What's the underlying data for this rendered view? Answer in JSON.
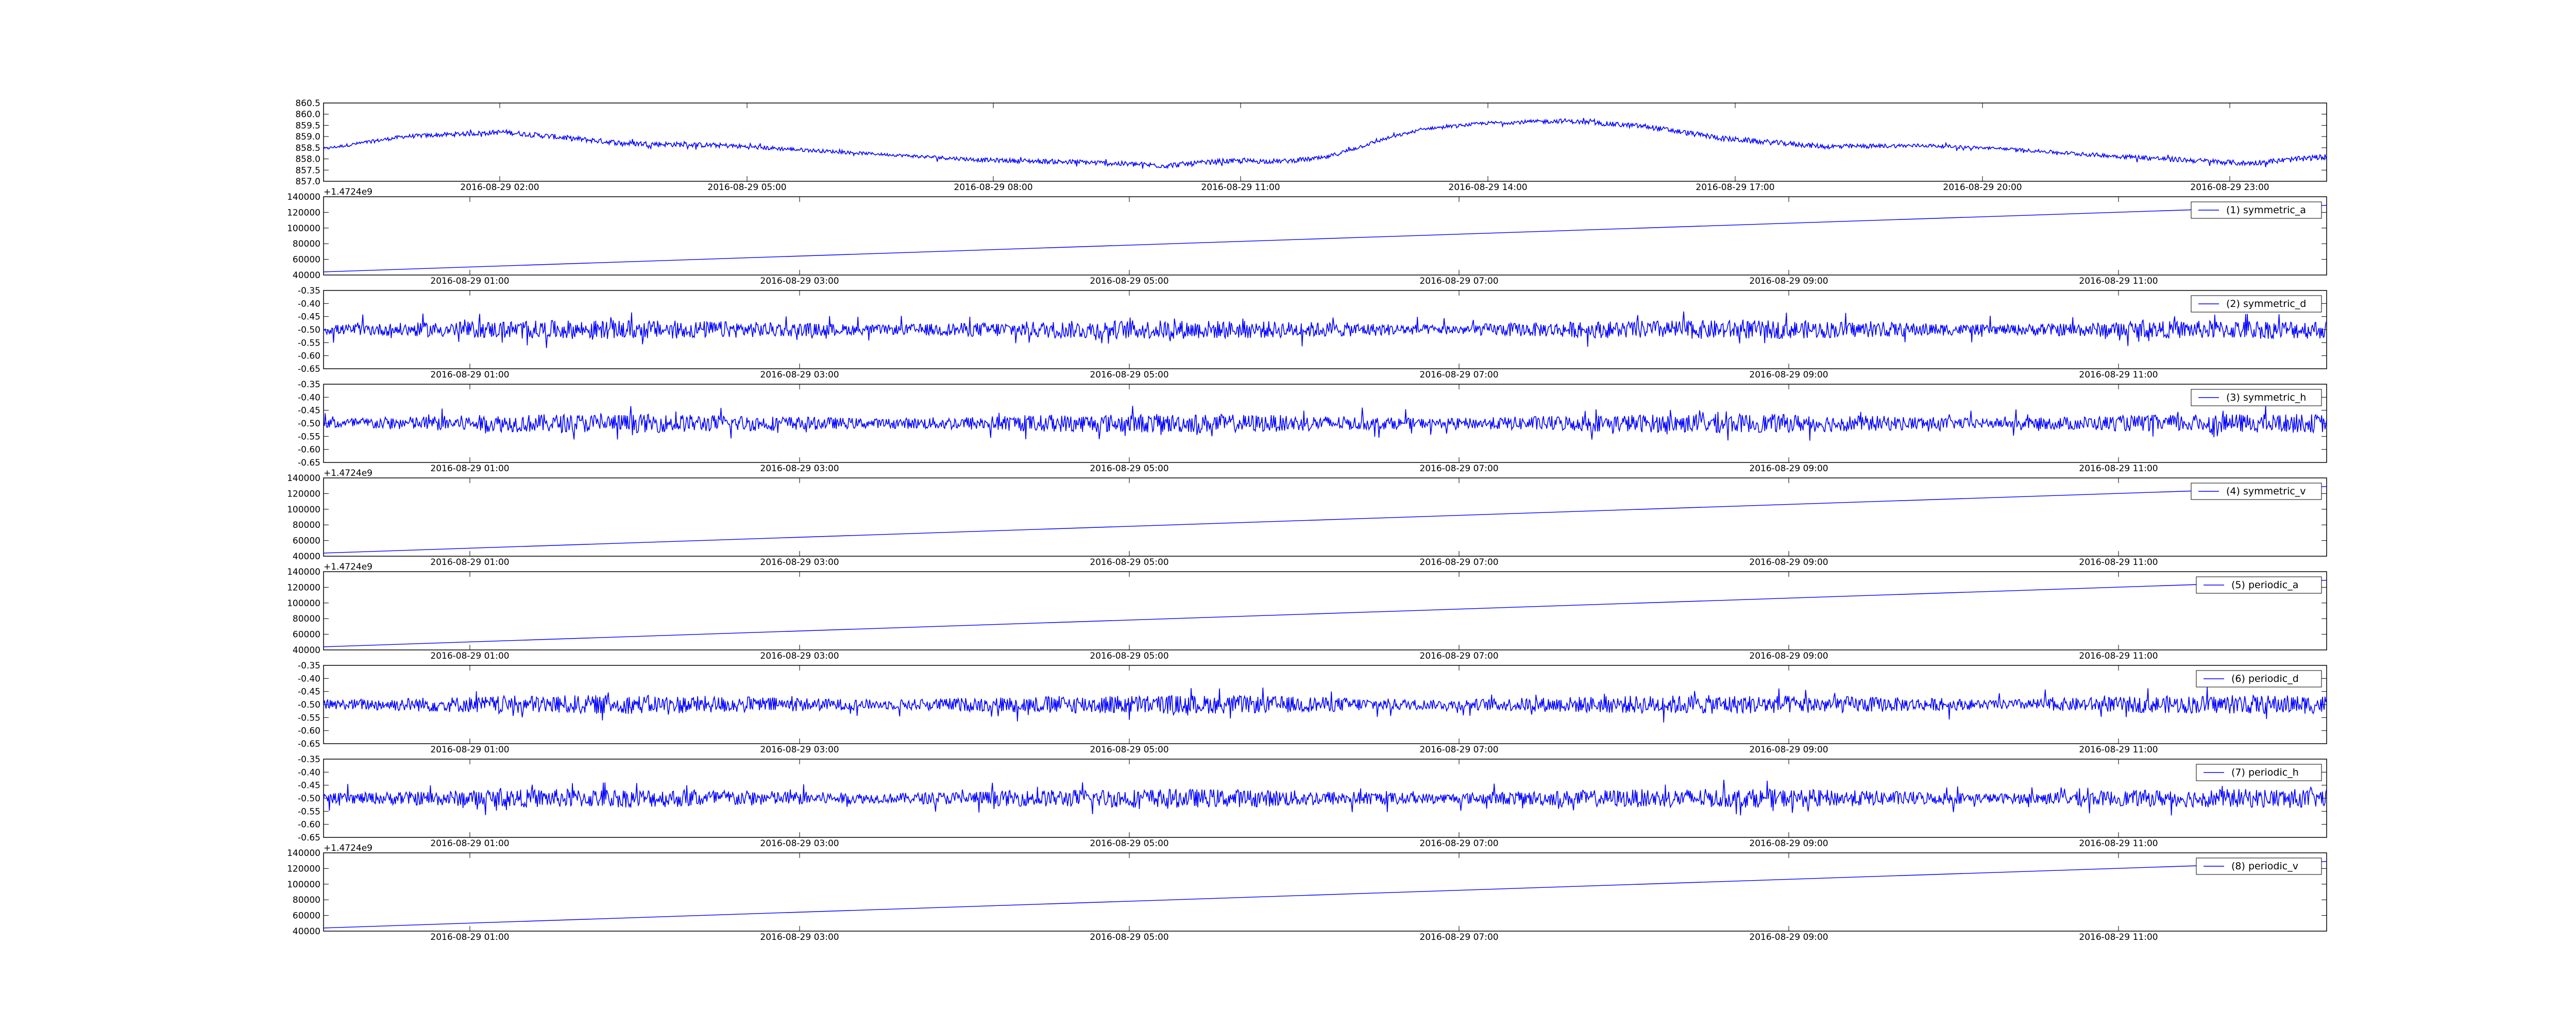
{
  "chart_data": [
    {
      "type": "line",
      "series": [
        {
          "name": "",
          "color": "#0000ff"
        }
      ],
      "ylim": [
        857.0,
        860.5
      ],
      "yticks": [
        "860.5",
        "860.0",
        "859.5",
        "859.0",
        "858.5",
        "858.0",
        "857.5",
        "857.0"
      ],
      "xtick_labels": [
        "2016-08-29 02:00",
        "2016-08-29 05:00",
        "2016-08-29 08:00",
        "2016-08-29 11:00",
        "2016-08-29 14:00",
        "2016-08-29 17:00",
        "2016-08-29 20:00",
        "2016-08-29 23:00"
      ],
      "offset_text": "",
      "legend": "",
      "trend_x": [
        0.0,
        0.04,
        0.09,
        0.15,
        0.2,
        0.28,
        0.33,
        0.38,
        0.42,
        0.45,
        0.48,
        0.5,
        0.53,
        0.55,
        0.58,
        0.62,
        0.66,
        0.7,
        0.75,
        0.8,
        0.84,
        0.88,
        0.92,
        0.96,
        1.0
      ],
      "trend_y": [
        858.45,
        859.0,
        859.2,
        858.7,
        858.6,
        858.2,
        857.95,
        857.85,
        857.7,
        857.9,
        857.9,
        858.05,
        858.9,
        859.35,
        859.6,
        859.7,
        859.45,
        858.9,
        858.55,
        858.6,
        858.45,
        858.2,
        858.0,
        857.8,
        858.1
      ],
      "noise": 0.1
    },
    {
      "type": "line",
      "series": [
        {
          "name": "(1) symmetric_a",
          "color": "#0000ff"
        }
      ],
      "ylim": [
        40000,
        140000
      ],
      "yticks": [
        "140000",
        "120000",
        "100000",
        "80000",
        "60000",
        "40000"
      ],
      "xtick_labels": [
        "2016-08-29 01:00",
        "2016-08-29 03:00",
        "2016-08-29 05:00",
        "2016-08-29 07:00",
        "2016-08-29 09:00",
        "2016-08-29 11:00"
      ],
      "offset_text": "+1.4724e9",
      "legend": "top-right",
      "trend_x": [
        0,
        1
      ],
      "trend_y": [
        44000,
        129000
      ],
      "noise": 0
    },
    {
      "type": "line",
      "series": [
        {
          "name": "(2) symmetric_d",
          "color": "#0000ff"
        }
      ],
      "ylim": [
        -0.65,
        -0.35
      ],
      "yticks": [
        "-0.35",
        "-0.40",
        "-0.45",
        "-0.50",
        "-0.55",
        "-0.60",
        "-0.65"
      ],
      "xtick_labels": [
        "2016-08-29 01:00",
        "2016-08-29 03:00",
        "2016-08-29 05:00",
        "2016-08-29 07:00",
        "2016-08-29 09:00",
        "2016-08-29 11:00"
      ],
      "offset_text": "",
      "legend": "top-right",
      "trend_x": [
        0,
        1
      ],
      "trend_y": [
        -0.5,
        -0.5
      ],
      "noise": 0.03
    },
    {
      "type": "line",
      "series": [
        {
          "name": "(3) symmetric_h",
          "color": "#0000ff"
        }
      ],
      "ylim": [
        -0.65,
        -0.35
      ],
      "yticks": [
        "-0.35",
        "-0.40",
        "-0.45",
        "-0.50",
        "-0.55",
        "-0.60",
        "-0.65"
      ],
      "xtick_labels": [
        "2016-08-29 01:00",
        "2016-08-29 03:00",
        "2016-08-29 05:00",
        "2016-08-29 07:00",
        "2016-08-29 09:00",
        "2016-08-29 11:00"
      ],
      "offset_text": "",
      "legend": "top-right",
      "trend_x": [
        0,
        1
      ],
      "trend_y": [
        -0.5,
        -0.5
      ],
      "noise": 0.03
    },
    {
      "type": "line",
      "series": [
        {
          "name": "(4) symmetric_v",
          "color": "#0000ff"
        }
      ],
      "ylim": [
        40000,
        140000
      ],
      "yticks": [
        "140000",
        "120000",
        "100000",
        "80000",
        "60000",
        "40000"
      ],
      "xtick_labels": [
        "2016-08-29 01:00",
        "2016-08-29 03:00",
        "2016-08-29 05:00",
        "2016-08-29 07:00",
        "2016-08-29 09:00",
        "2016-08-29 11:00"
      ],
      "offset_text": "+1.4724e9",
      "legend": "top-right",
      "trend_x": [
        0,
        1
      ],
      "trend_y": [
        44000,
        129000
      ],
      "noise": 0
    },
    {
      "type": "line",
      "series": [
        {
          "name": "(5) periodic_a",
          "color": "#0000ff"
        }
      ],
      "ylim": [
        40000,
        140000
      ],
      "yticks": [
        "140000",
        "120000",
        "100000",
        "80000",
        "60000",
        "40000"
      ],
      "xtick_labels": [
        "2016-08-29 01:00",
        "2016-08-29 03:00",
        "2016-08-29 05:00",
        "2016-08-29 07:00",
        "2016-08-29 09:00",
        "2016-08-29 11:00"
      ],
      "offset_text": "+1.4724e9",
      "legend": "top-right",
      "trend_x": [
        0,
        1
      ],
      "trend_y": [
        44000,
        129000
      ],
      "noise": 0
    },
    {
      "type": "line",
      "series": [
        {
          "name": "(6) periodic_d",
          "color": "#0000ff"
        }
      ],
      "ylim": [
        -0.65,
        -0.35
      ],
      "yticks": [
        "-0.35",
        "-0.40",
        "-0.45",
        "-0.50",
        "-0.55",
        "-0.60",
        "-0.65"
      ],
      "xtick_labels": [
        "2016-08-29 01:00",
        "2016-08-29 03:00",
        "2016-08-29 05:00",
        "2016-08-29 07:00",
        "2016-08-29 09:00",
        "2016-08-29 11:00"
      ],
      "offset_text": "",
      "legend": "top-right",
      "trend_x": [
        0,
        1
      ],
      "trend_y": [
        -0.5,
        -0.5
      ],
      "noise": 0.03
    },
    {
      "type": "line",
      "series": [
        {
          "name": "(7) periodic_h",
          "color": "#0000ff"
        }
      ],
      "ylim": [
        -0.65,
        -0.35
      ],
      "yticks": [
        "-0.35",
        "-0.40",
        "-0.45",
        "-0.50",
        "-0.55",
        "-0.60",
        "-0.65"
      ],
      "xtick_labels": [
        "2016-08-29 01:00",
        "2016-08-29 03:00",
        "2016-08-29 05:00",
        "2016-08-29 07:00",
        "2016-08-29 09:00",
        "2016-08-29 11:00"
      ],
      "offset_text": "",
      "legend": "top-right",
      "trend_x": [
        0,
        1
      ],
      "trend_y": [
        -0.5,
        -0.5
      ],
      "noise": 0.03
    },
    {
      "type": "line",
      "series": [
        {
          "name": "(8) periodic_v",
          "color": "#0000ff"
        }
      ],
      "ylim": [
        40000,
        140000
      ],
      "yticks": [
        "140000",
        "120000",
        "100000",
        "80000",
        "60000",
        "40000"
      ],
      "xtick_labels": [
        "2016-08-29 01:00",
        "2016-08-29 03:00",
        "2016-08-29 05:00",
        "2016-08-29 07:00",
        "2016-08-29 09:00",
        "2016-08-29 11:00"
      ],
      "offset_text": "+1.4724e9",
      "legend": "top-right",
      "trend_x": [
        0,
        1
      ],
      "trend_y": [
        44000,
        129000
      ],
      "noise": 0
    }
  ]
}
